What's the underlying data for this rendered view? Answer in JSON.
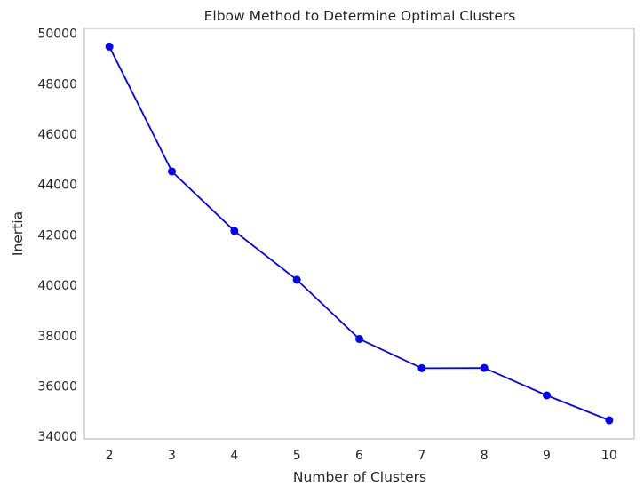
{
  "chart_data": {
    "type": "line",
    "title": "Elbow Method to Determine Optimal Clusters",
    "xlabel": "Number of Clusters",
    "ylabel": "Inertia",
    "x": [
      2,
      3,
      4,
      5,
      6,
      7,
      8,
      9,
      10
    ],
    "series": [
      {
        "values": [
          49480,
          44520,
          42160,
          40220,
          37870,
          36710,
          36720,
          35630,
          34640
        ],
        "color": "#0000ff",
        "marker": "circle"
      }
    ],
    "xticks": [
      "2",
      "3",
      "4",
      "5",
      "6",
      "7",
      "8",
      "9",
      "10"
    ],
    "yticks": [
      "34000",
      "36000",
      "38000",
      "40000",
      "42000",
      "44000",
      "46000",
      "48000",
      "50000"
    ],
    "xlim": [
      1.6,
      10.4
    ],
    "ylim": [
      33900,
      50200
    ],
    "grid": false,
    "frame_color": "#cccccc"
  }
}
